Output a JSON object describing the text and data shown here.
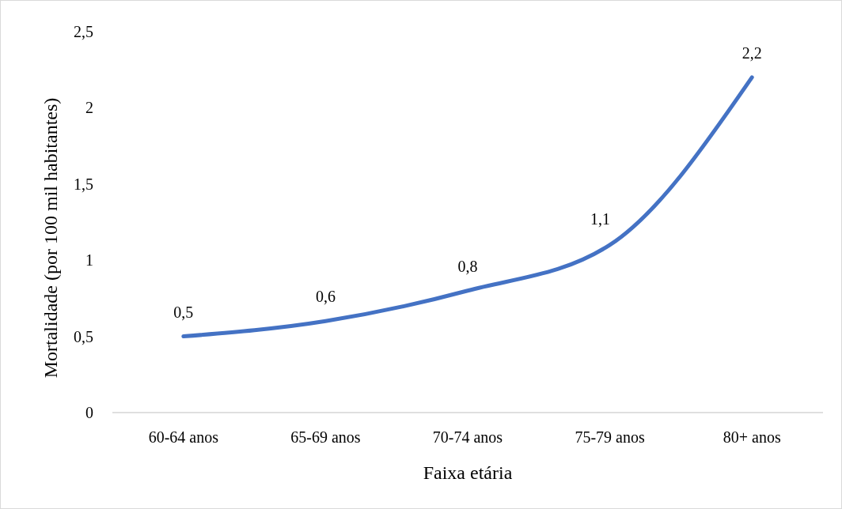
{
  "chart_data": {
    "type": "line",
    "xlabel": "Faixa etária",
    "ylabel": "Mortalidade (por 100 mil habitantes)",
    "categories": [
      "60-64 anos",
      "65-69 anos",
      "70-74 anos",
      "75-79 anos",
      "80+ anos"
    ],
    "series": [
      {
        "color": "#4472c4",
        "values": [
          0.5,
          0.6,
          0.8,
          1.1,
          2.2
        ],
        "value_labels": [
          "0,5",
          "0,6",
          "0,8",
          "1,1",
          "2,2"
        ]
      }
    ],
    "ylim": [
      0,
      2.5
    ],
    "yticks": [
      0,
      {
        "value": 0.5,
        "label": "0,5"
      },
      1,
      {
        "value": 1.5,
        "label": "1,5"
      },
      2,
      {
        "value": 2.5,
        "label": "2,5"
      }
    ],
    "grid": false,
    "marker": "none",
    "line_style": "solid"
  }
}
